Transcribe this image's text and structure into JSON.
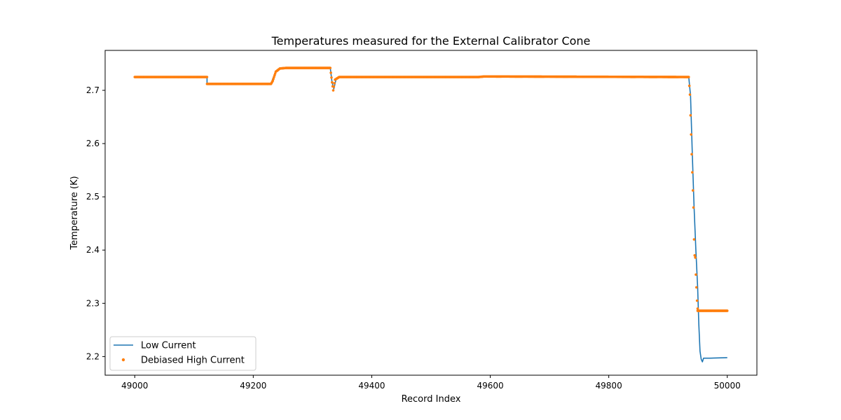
{
  "chart_data": {
    "type": "line",
    "title": "Temperatures measured for the External Calibrator Cone",
    "xlabel": "Record Index",
    "ylabel": "Temperature (K)",
    "xlim": [
      48950,
      50050
    ],
    "ylim": [
      2.165,
      2.775
    ],
    "xticks": [
      49000,
      49200,
      49400,
      49600,
      49800,
      50000
    ],
    "yticks": [
      2.2,
      2.3,
      2.4,
      2.5,
      2.6,
      2.7
    ],
    "xtick_labels": [
      "49000",
      "49200",
      "49400",
      "49600",
      "49800",
      "50000"
    ],
    "ytick_labels": [
      "2.2",
      "2.3",
      "2.4",
      "2.5",
      "2.6",
      "2.7"
    ],
    "grid": false,
    "legend_position": "lower-left",
    "series": [
      {
        "name": "Low Current",
        "style": "line",
        "color": "#1f77b4",
        "x": [
          49000,
          49122,
          49122,
          49230,
          49233,
          49240,
          49250,
          49330,
          49333,
          49336,
          49340,
          49345,
          49580,
          49590,
          49935,
          49938,
          49941,
          49944,
          49947,
          49950,
          49952,
          49954,
          49956,
          49958,
          49960,
          49970,
          50000
        ],
        "y": [
          2.725,
          2.725,
          2.712,
          2.712,
          2.722,
          2.738,
          2.742,
          2.742,
          2.715,
          2.703,
          2.722,
          2.725,
          2.725,
          2.726,
          2.725,
          2.69,
          2.58,
          2.48,
          2.4,
          2.33,
          2.26,
          2.21,
          2.195,
          2.19,
          2.197,
          2.197,
          2.198
        ]
      },
      {
        "name": "Debiased High Current",
        "style": "markers",
        "color": "#ff7f0e",
        "x": [
          49000,
          49122,
          49122,
          49230,
          49233,
          49238,
          49245,
          49255,
          49330,
          49333,
          49335,
          49338,
          49345,
          49580,
          49590,
          49935,
          49937,
          49938,
          49939,
          49940,
          49941,
          49942,
          49943,
          49944,
          49945,
          49946,
          49947,
          49948,
          49949,
          49950,
          49950,
          50000
        ],
        "y": [
          2.725,
          2.725,
          2.712,
          2.712,
          2.718,
          2.735,
          2.741,
          2.742,
          2.742,
          2.715,
          2.7,
          2.72,
          2.725,
          2.725,
          2.726,
          2.725,
          2.692,
          2.653,
          2.617,
          2.58,
          2.546,
          2.512,
          2.48,
          2.42,
          2.39,
          2.386,
          2.354,
          2.33,
          2.305,
          2.29,
          2.286,
          2.286
        ]
      }
    ]
  }
}
